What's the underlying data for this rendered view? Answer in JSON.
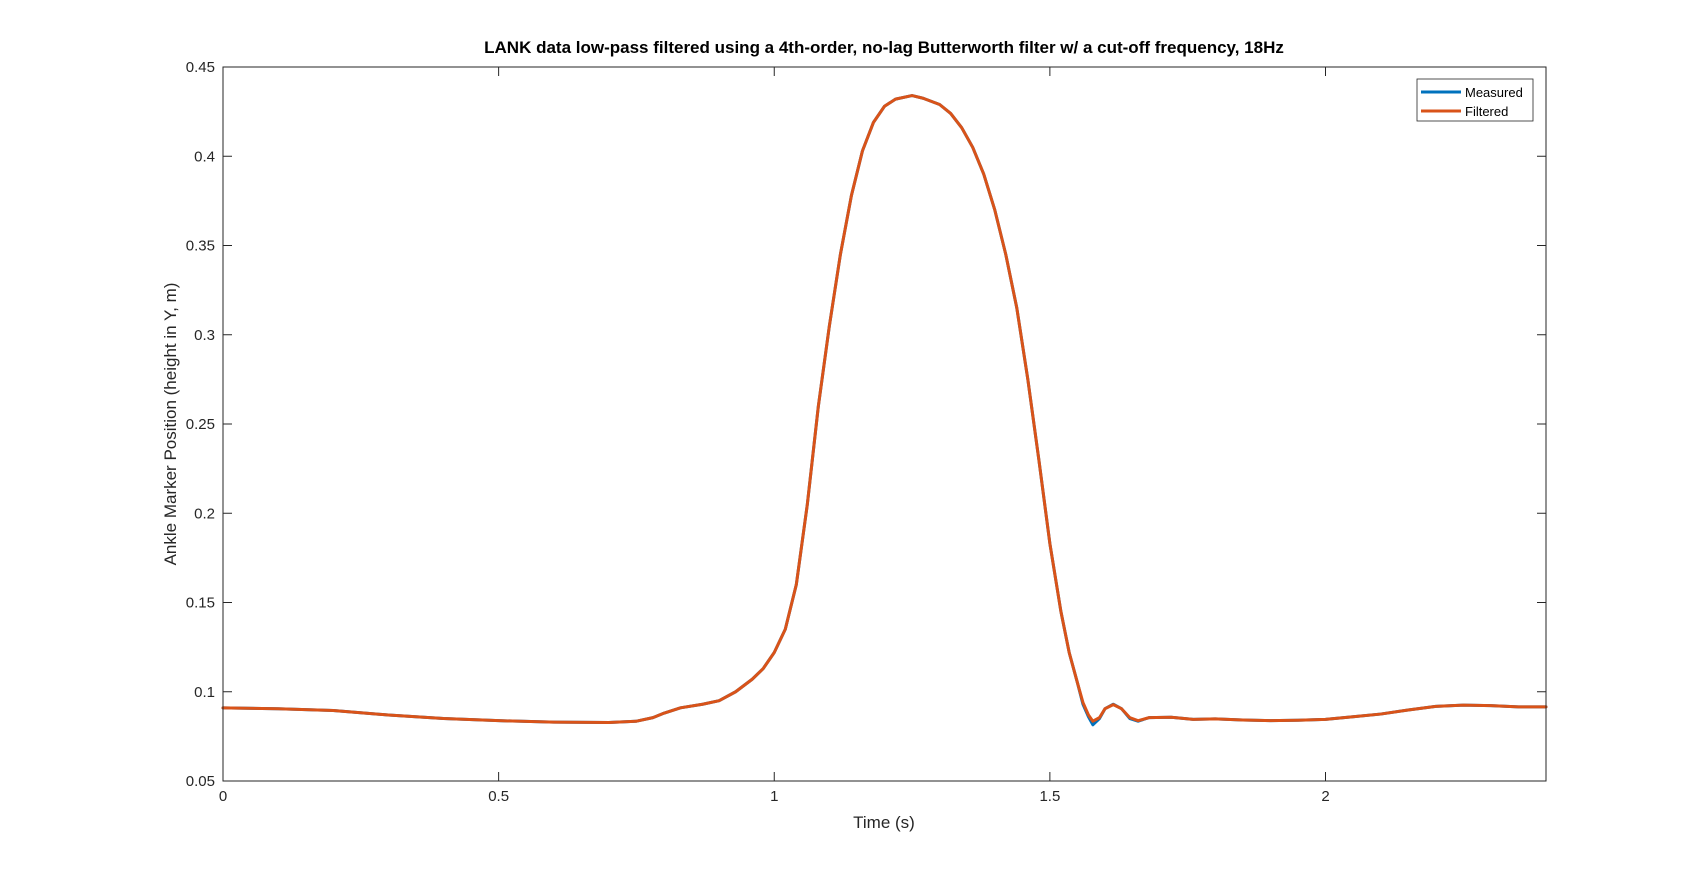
{
  "chart_data": {
    "type": "line",
    "title": "LANK data low-pass filtered using a 4th-order, no-lag Butterworth filter w/ a cut-off frequency, 18Hz",
    "xlabel": "Time (s)",
    "ylabel": "Ankle Marker Position (height in Y, m)",
    "xlim": [
      0,
      2.4
    ],
    "ylim": [
      0.05,
      0.45
    ],
    "x_ticks": [
      0,
      0.5,
      1,
      1.5,
      2
    ],
    "x_tick_labels": [
      "0",
      "0.5",
      "1",
      "1.5",
      "2"
    ],
    "y_ticks": [
      0.05,
      0.1,
      0.15,
      0.2,
      0.25,
      0.3,
      0.35,
      0.4,
      0.45
    ],
    "y_tick_labels": [
      "0.05",
      "0.1",
      "0.15",
      "0.2",
      "0.25",
      "0.3",
      "0.35",
      "0.4",
      "0.45"
    ],
    "grid": false,
    "legend_position": "top-right",
    "series": [
      {
        "name": "Measured",
        "color": "#0072BD",
        "points": [
          [
            0,
            0.091
          ],
          [
            0.1,
            0.0905
          ],
          [
            0.2,
            0.0895
          ],
          [
            0.3,
            0.087
          ],
          [
            0.4,
            0.085
          ],
          [
            0.5,
            0.0838
          ],
          [
            0.6,
            0.083
          ],
          [
            0.7,
            0.0828
          ],
          [
            0.75,
            0.0835
          ],
          [
            0.78,
            0.0855
          ],
          [
            0.8,
            0.088
          ],
          [
            0.83,
            0.091
          ],
          [
            0.87,
            0.093
          ],
          [
            0.9,
            0.095
          ],
          [
            0.93,
            0.1
          ],
          [
            0.96,
            0.107
          ],
          [
            0.98,
            0.113
          ],
          [
            1.0,
            0.122
          ],
          [
            1.02,
            0.135
          ],
          [
            1.04,
            0.16
          ],
          [
            1.06,
            0.205
          ],
          [
            1.08,
            0.26
          ],
          [
            1.1,
            0.305
          ],
          [
            1.12,
            0.345
          ],
          [
            1.14,
            0.378
          ],
          [
            1.16,
            0.403
          ],
          [
            1.18,
            0.419
          ],
          [
            1.2,
            0.428
          ],
          [
            1.22,
            0.432
          ],
          [
            1.25,
            0.434
          ],
          [
            1.27,
            0.4325
          ],
          [
            1.3,
            0.429
          ],
          [
            1.32,
            0.424
          ],
          [
            1.34,
            0.416
          ],
          [
            1.36,
            0.405
          ],
          [
            1.38,
            0.39
          ],
          [
            1.4,
            0.37
          ],
          [
            1.42,
            0.345
          ],
          [
            1.44,
            0.315
          ],
          [
            1.46,
            0.275
          ],
          [
            1.48,
            0.23
          ],
          [
            1.5,
            0.183
          ],
          [
            1.52,
            0.145
          ],
          [
            1.535,
            0.122
          ],
          [
            1.55,
            0.105
          ],
          [
            1.56,
            0.093
          ],
          [
            1.57,
            0.086
          ],
          [
            1.578,
            0.0815
          ],
          [
            1.59,
            0.085
          ],
          [
            1.6,
            0.0905
          ],
          [
            1.615,
            0.093
          ],
          [
            1.63,
            0.0905
          ],
          [
            1.645,
            0.085
          ],
          [
            1.66,
            0.0835
          ],
          [
            1.68,
            0.0855
          ],
          [
            1.72,
            0.0857
          ],
          [
            1.76,
            0.0845
          ],
          [
            1.8,
            0.0848
          ],
          [
            1.85,
            0.0842
          ],
          [
            1.9,
            0.0838
          ],
          [
            1.95,
            0.084
          ],
          [
            2.0,
            0.0845
          ],
          [
            2.05,
            0.086
          ],
          [
            2.1,
            0.0875
          ],
          [
            2.15,
            0.0898
          ],
          [
            2.2,
            0.0918
          ],
          [
            2.25,
            0.0925
          ],
          [
            2.3,
            0.0922
          ],
          [
            2.35,
            0.0915
          ],
          [
            2.4,
            0.0915
          ]
        ]
      },
      {
        "name": "Filtered",
        "color": "#D95319",
        "points": [
          [
            0,
            0.091
          ],
          [
            0.1,
            0.0905
          ],
          [
            0.2,
            0.0895
          ],
          [
            0.3,
            0.087
          ],
          [
            0.4,
            0.085
          ],
          [
            0.5,
            0.0838
          ],
          [
            0.6,
            0.083
          ],
          [
            0.7,
            0.0828
          ],
          [
            0.75,
            0.0835
          ],
          [
            0.78,
            0.0855
          ],
          [
            0.8,
            0.088
          ],
          [
            0.83,
            0.091
          ],
          [
            0.87,
            0.093
          ],
          [
            0.9,
            0.095
          ],
          [
            0.93,
            0.1
          ],
          [
            0.96,
            0.107
          ],
          [
            0.98,
            0.113
          ],
          [
            1.0,
            0.122
          ],
          [
            1.02,
            0.135
          ],
          [
            1.04,
            0.16
          ],
          [
            1.06,
            0.205
          ],
          [
            1.08,
            0.26
          ],
          [
            1.1,
            0.305
          ],
          [
            1.12,
            0.345
          ],
          [
            1.14,
            0.378
          ],
          [
            1.16,
            0.403
          ],
          [
            1.18,
            0.419
          ],
          [
            1.2,
            0.428
          ],
          [
            1.22,
            0.432
          ],
          [
            1.25,
            0.434
          ],
          [
            1.27,
            0.4325
          ],
          [
            1.3,
            0.429
          ],
          [
            1.32,
            0.424
          ],
          [
            1.34,
            0.416
          ],
          [
            1.36,
            0.405
          ],
          [
            1.38,
            0.39
          ],
          [
            1.4,
            0.37
          ],
          [
            1.42,
            0.345
          ],
          [
            1.44,
            0.315
          ],
          [
            1.46,
            0.275
          ],
          [
            1.48,
            0.23
          ],
          [
            1.5,
            0.183
          ],
          [
            1.52,
            0.145
          ],
          [
            1.535,
            0.122
          ],
          [
            1.55,
            0.105
          ],
          [
            1.56,
            0.094
          ],
          [
            1.57,
            0.087
          ],
          [
            1.578,
            0.0835
          ],
          [
            1.59,
            0.0855
          ],
          [
            1.6,
            0.0905
          ],
          [
            1.615,
            0.0928
          ],
          [
            1.63,
            0.0905
          ],
          [
            1.645,
            0.0855
          ],
          [
            1.66,
            0.0838
          ],
          [
            1.68,
            0.0855
          ],
          [
            1.72,
            0.0857
          ],
          [
            1.76,
            0.0845
          ],
          [
            1.8,
            0.0848
          ],
          [
            1.85,
            0.0842
          ],
          [
            1.9,
            0.0838
          ],
          [
            1.95,
            0.084
          ],
          [
            2.0,
            0.0845
          ],
          [
            2.05,
            0.086
          ],
          [
            2.1,
            0.0875
          ],
          [
            2.15,
            0.0898
          ],
          [
            2.2,
            0.0918
          ],
          [
            2.25,
            0.0925
          ],
          [
            2.3,
            0.0922
          ],
          [
            2.35,
            0.0915
          ],
          [
            2.4,
            0.0915
          ]
        ]
      }
    ]
  }
}
